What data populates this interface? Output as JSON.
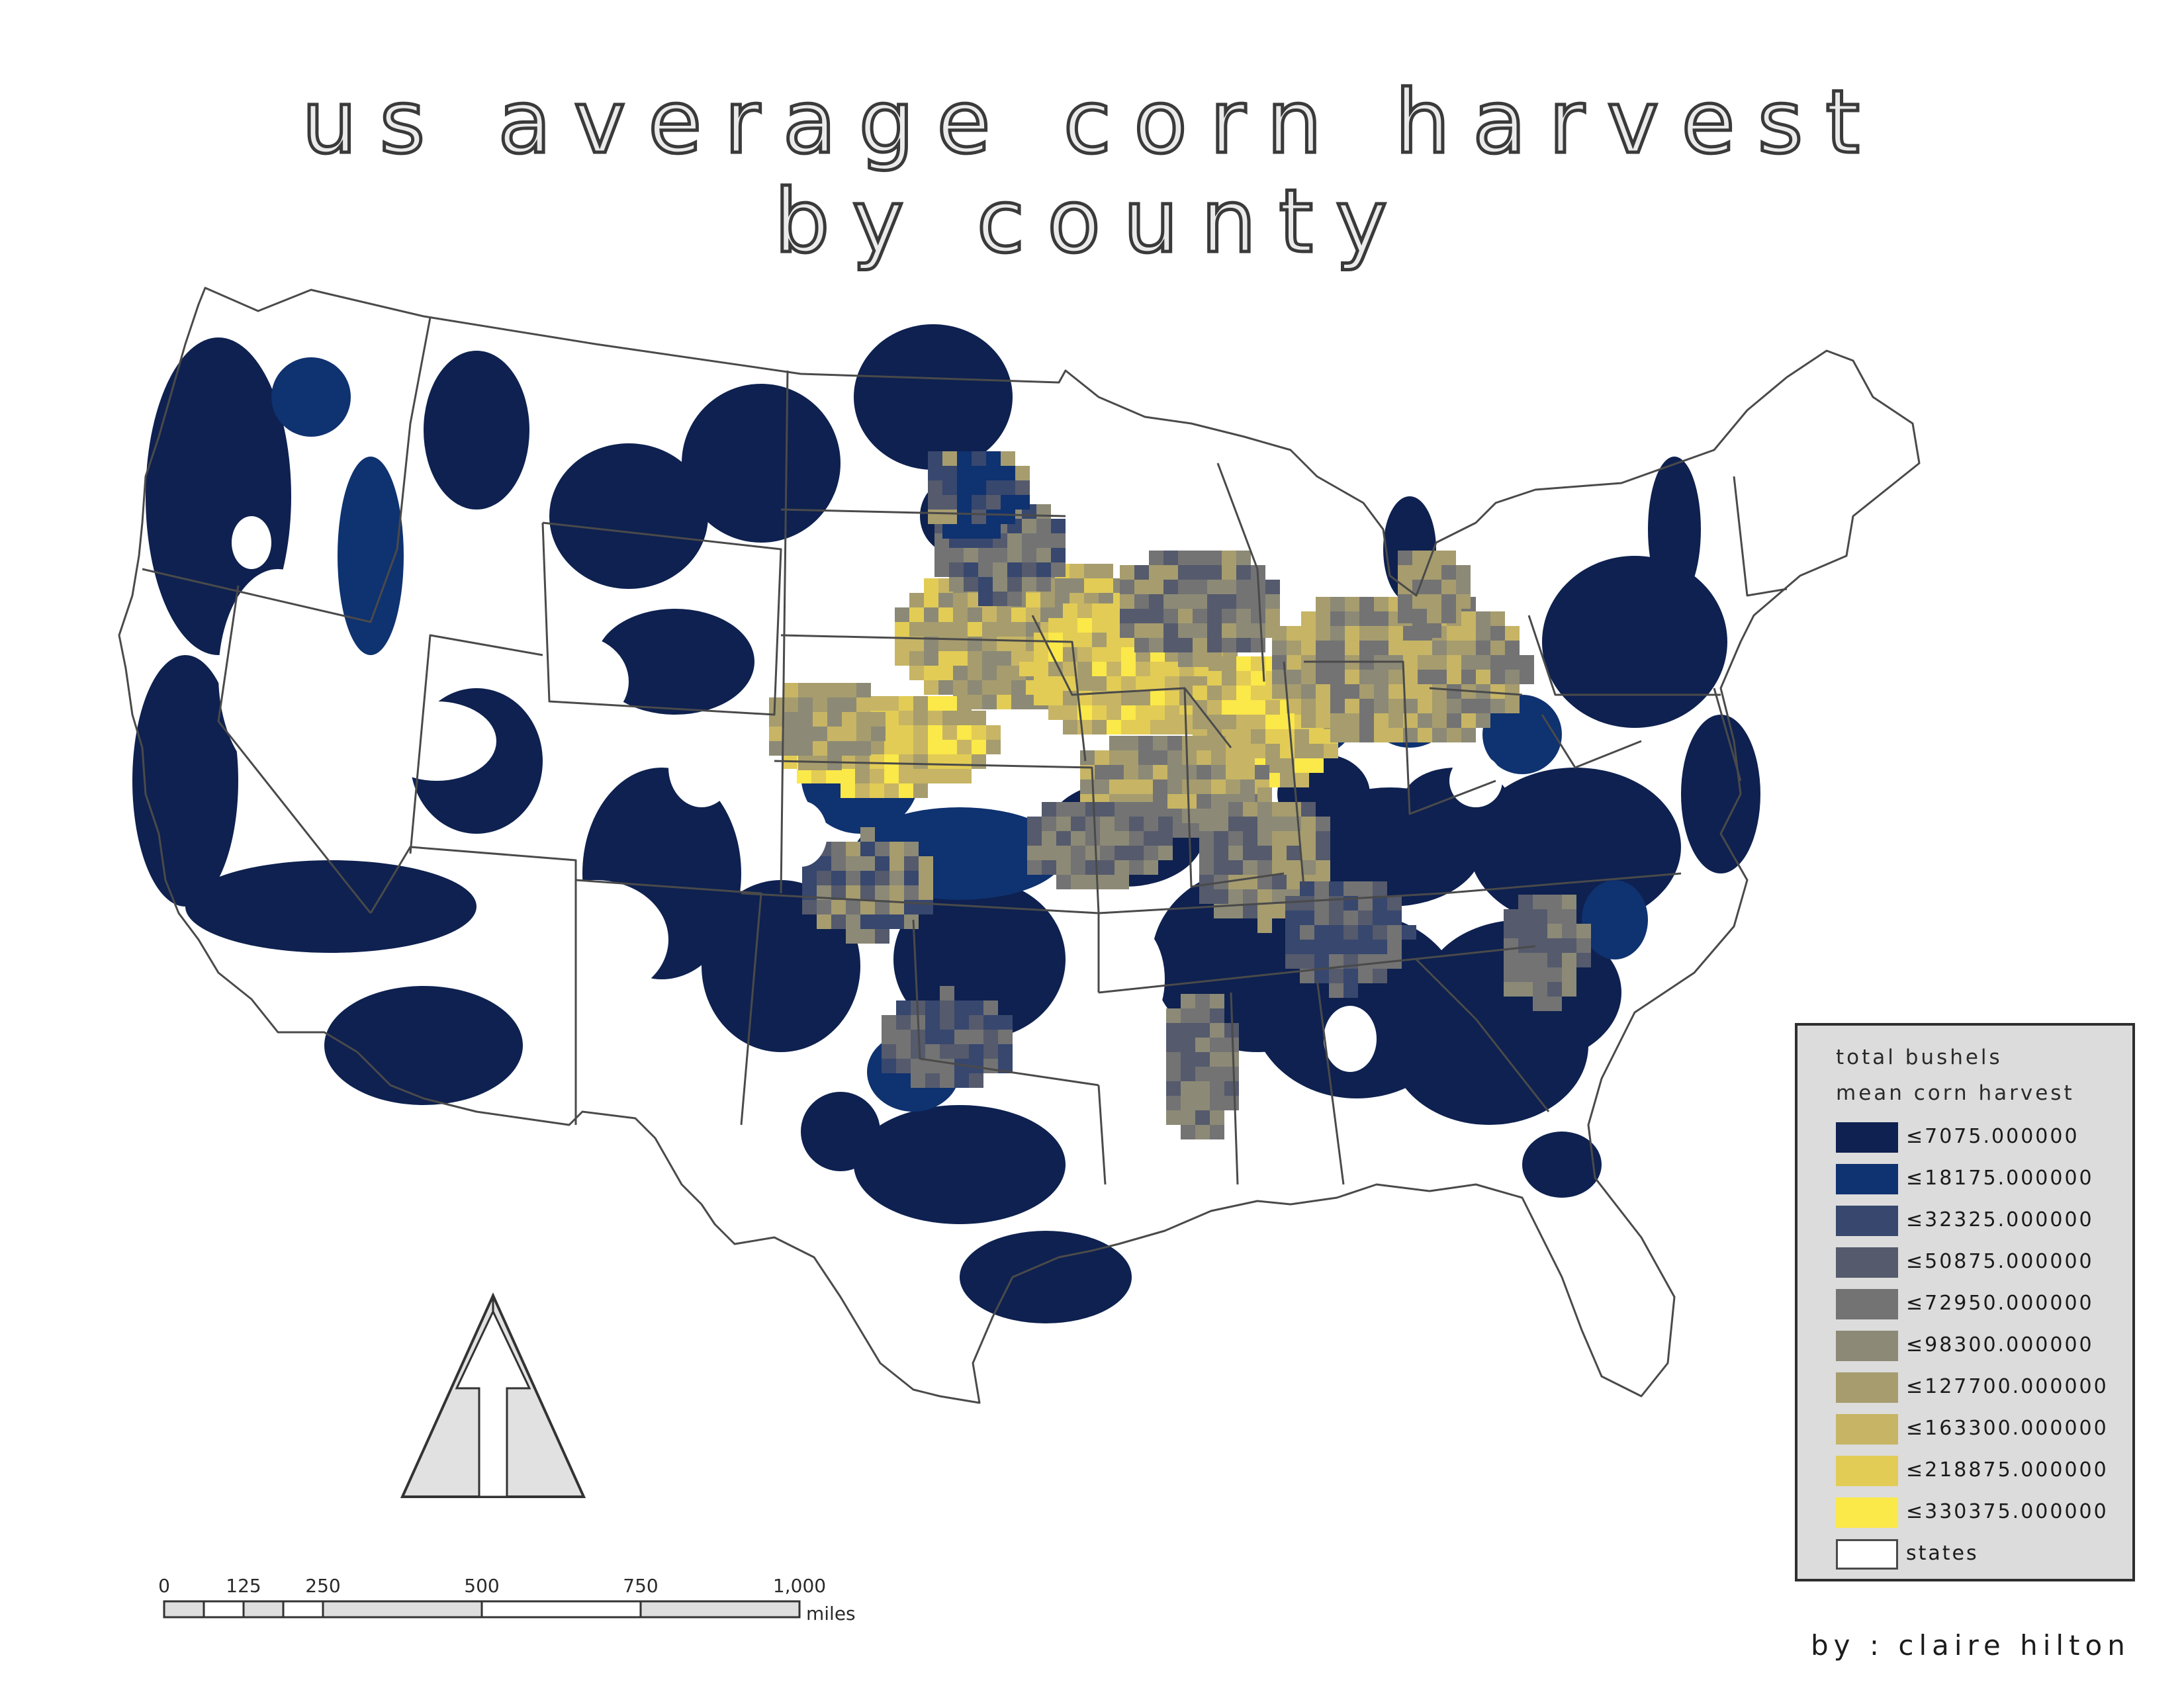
{
  "title": {
    "line1": "us average corn harvest",
    "line2": "by county"
  },
  "legend": {
    "heading1": "total bushels",
    "heading2": "mean corn harvest",
    "classes": [
      {
        "label": "≤7075.000000",
        "color": "#0e2150"
      },
      {
        "label": "≤18175.000000",
        "color": "#0f3270"
      },
      {
        "label": "≤32325.000000",
        "color": "#37476e"
      },
      {
        "label": "≤50875.000000",
        "color": "#555a6c"
      },
      {
        "label": "≤72950.000000",
        "color": "#737374"
      },
      {
        "label": "≤98300.000000",
        "color": "#8c8a76"
      },
      {
        "label": "≤127700.000000",
        "color": "#a69c6e"
      },
      {
        "label": "≤163300.000000",
        "color": "#c7b565"
      },
      {
        "label": "≤218875.000000",
        "color": "#e2cc55"
      },
      {
        "label": "≤330375.000000",
        "color": "#fbe849"
      },
      {
        "label": "states",
        "color": "#ffffff"
      }
    ]
  },
  "north_arrow": {
    "icon": "north-arrow-icon"
  },
  "scale_bar": {
    "ticks": [
      "0",
      "125",
      "250",
      "500",
      "750",
      "1,000"
    ],
    "unit": "miles"
  },
  "author": "by : claire hilton",
  "map": {
    "boundary_color": "#4a4a4a",
    "background": "#ffffff"
  }
}
